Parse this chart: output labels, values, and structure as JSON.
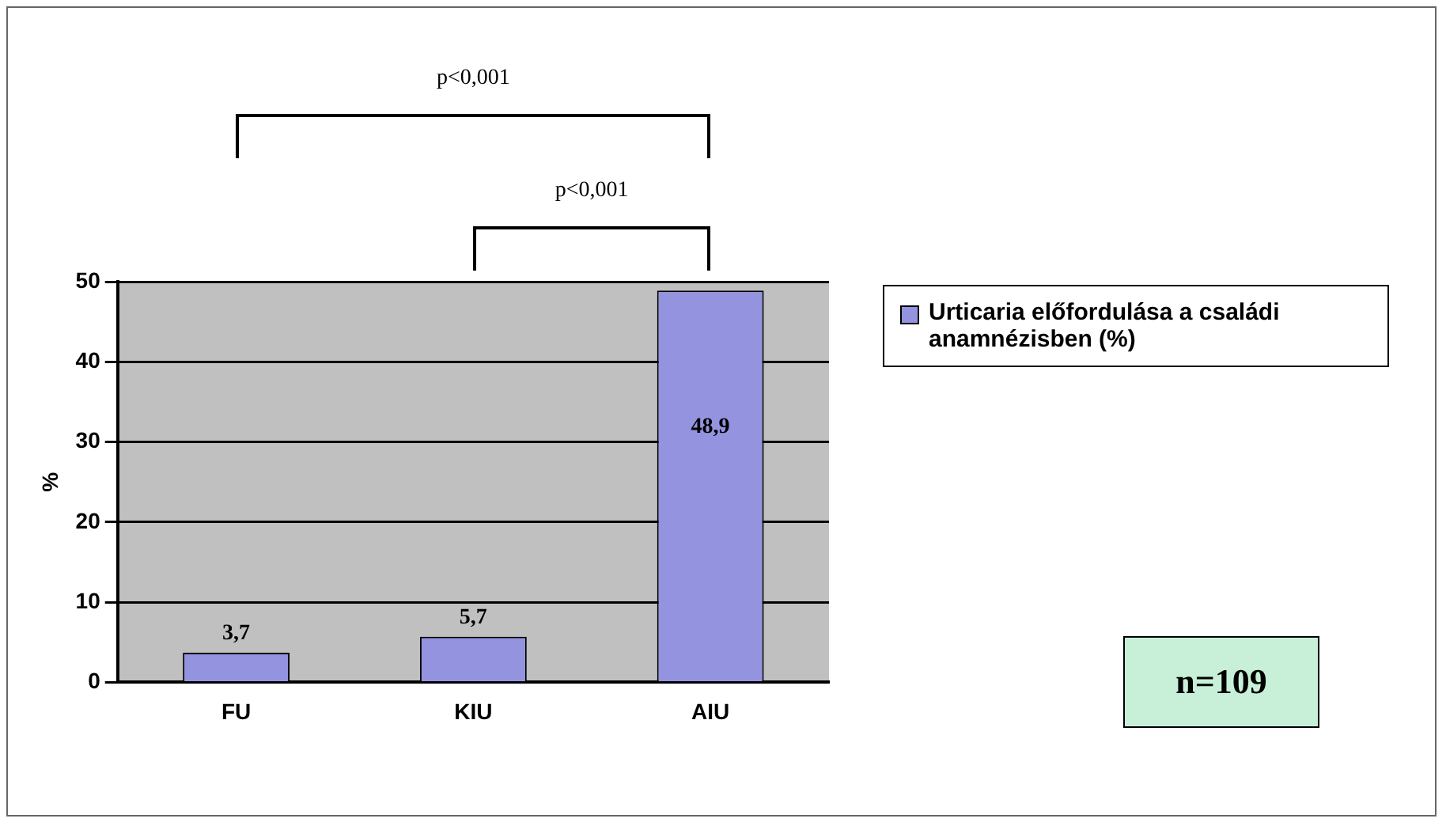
{
  "chart_data": {
    "type": "bar",
    "categories": [
      "FU",
      "KIU",
      "AIU"
    ],
    "series": [
      {
        "name": "Urticaria előfordulása a családi anamnézisben (%)",
        "color": "#9393e0",
        "values": [
          3.7,
          5.7,
          48.9
        ],
        "value_labels": [
          "3,7",
          "5,7",
          "48,9"
        ]
      }
    ],
    "ylabel": "%",
    "ylim": [
      0,
      50
    ],
    "yticks": [
      0,
      10,
      20,
      30,
      40,
      50
    ],
    "grid": "y",
    "legend": "right",
    "annotations": [
      "p<0,001",
      "p<0,001",
      "n=109"
    ]
  }
}
